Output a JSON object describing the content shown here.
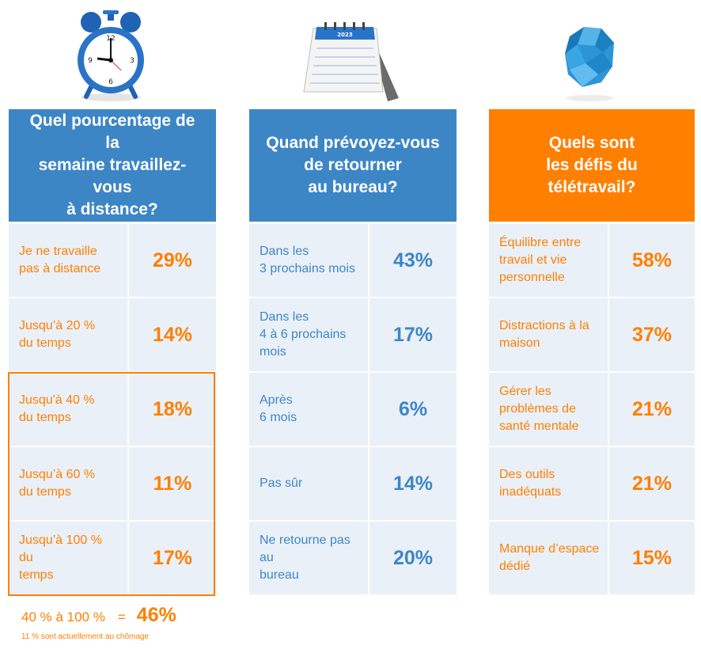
{
  "colors": {
    "blue": "#3d86c6",
    "orange": "#ff7f00",
    "cell_bg": "#eaf0f8"
  },
  "icons": [
    "alarm-clock-icon",
    "calendar-icon",
    "crumpled-paper-icon"
  ],
  "calendar_year": "2023",
  "columns": [
    {
      "header": "Quel pourcentage de la\nsemaine travaillez-vous\nà distance?",
      "rows": [
        {
          "label": "Je ne travaille\npas à distance",
          "value": "29%"
        },
        {
          "label": "Jusqu’à 20 %\ndu temps",
          "value": "14%"
        },
        {
          "label": "Jusqu'à 40 %\ndu temps",
          "value": "18%"
        },
        {
          "label": "Jusqu’à 60 %\ndu temps",
          "value": "11%"
        },
        {
          "label": "Jusqu’à 100 %   du\ntemps",
          "value": "17%"
        }
      ]
    },
    {
      "header": "Quand prévoyez-vous\nde retourner\nau bureau?",
      "rows": [
        {
          "label": "Dans les\n3 prochains mois",
          "value": "43%"
        },
        {
          "label": "Dans les\n 4 à 6 prochains\nmois",
          "value": "17%"
        },
        {
          "label": "Après\n6 mois",
          "value": "6%"
        },
        {
          "label": "Pas sûr",
          "value": "14%"
        },
        {
          "label": "Ne retourne pas au\nbureau",
          "value": "20%"
        }
      ]
    },
    {
      "header": "Quels sont\nles défis du\ntélétravail?",
      "rows": [
        {
          "label": "Équilibre entre\ntravail et vie\npersonnelle",
          "value": "58%"
        },
        {
          "label": "Distractions à la\nmaison",
          "value": "37%"
        },
        {
          "label": "Gérer les\nproblèmes de\nsanté mentale",
          "value": "21%"
        },
        {
          "label": "Des outils\ninadéquats",
          "value": "21%"
        },
        {
          "label": "Manque d’espace\ndédié",
          "value": "15%"
        }
      ]
    }
  ],
  "summary": {
    "range": "40 % à 100 %",
    "equals": "=",
    "total": "46%"
  },
  "note": "11 % sont actuellement au chômage"
}
